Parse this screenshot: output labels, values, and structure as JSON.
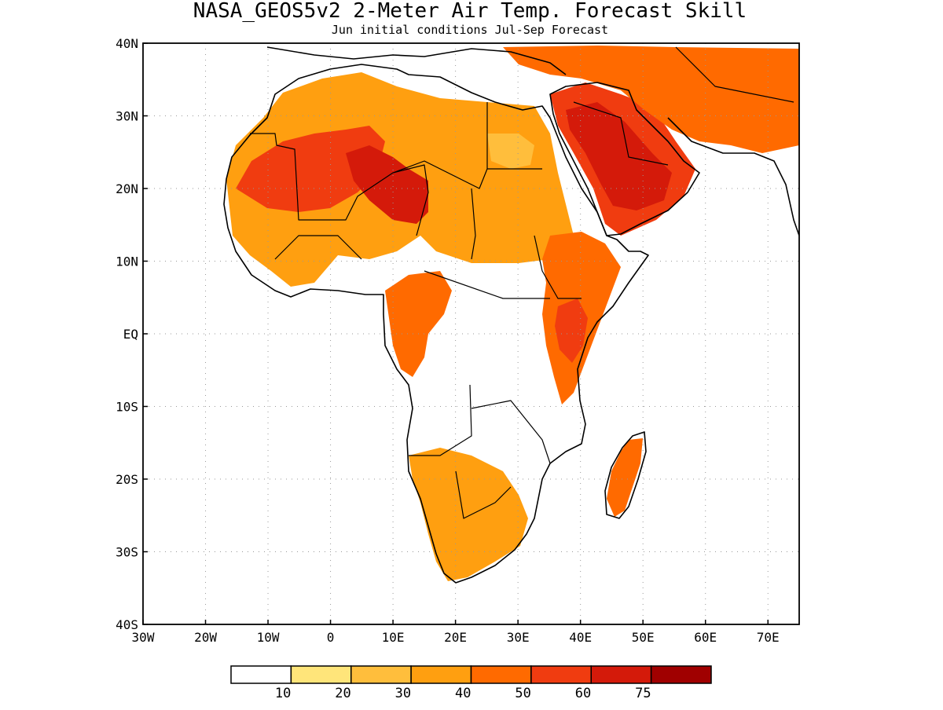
{
  "title": "NASA_GEOS5v2 2-Meter Air Temp. Forecast Skill",
  "subtitle": "Jun initial conditions  Jul-Sep Forecast",
  "map": {
    "lon_range": [
      -30,
      75
    ],
    "lat_range": [
      -40,
      40
    ],
    "lon_ticks": [
      {
        "value": -30,
        "label": "30W"
      },
      {
        "value": -20,
        "label": "20W"
      },
      {
        "value": -10,
        "label": "10W"
      },
      {
        "value": 0,
        "label": "0"
      },
      {
        "value": 10,
        "label": "10E"
      },
      {
        "value": 20,
        "label": "20E"
      },
      {
        "value": 30,
        "label": "30E"
      },
      {
        "value": 40,
        "label": "40E"
      },
      {
        "value": 50,
        "label": "50E"
      },
      {
        "value": 60,
        "label": "60E"
      },
      {
        "value": 70,
        "label": "70E"
      }
    ],
    "lat_ticks": [
      {
        "value": 40,
        "label": "40N"
      },
      {
        "value": 30,
        "label": "30N"
      },
      {
        "value": 20,
        "label": "20N"
      },
      {
        "value": 10,
        "label": "10N"
      },
      {
        "value": 0,
        "label": "EQ"
      },
      {
        "value": -10,
        "label": "10S"
      },
      {
        "value": -20,
        "label": "20S"
      },
      {
        "value": -30,
        "label": "30S"
      },
      {
        "value": -40,
        "label": "40S"
      }
    ],
    "grid": true,
    "colors": {
      "land_outline": "#000000",
      "grid": "#999999"
    }
  },
  "colorbar": {
    "bins": [
      {
        "color": "#ffffff"
      },
      {
        "color": "#ffe57a"
      },
      {
        "color": "#ffbe3c"
      },
      {
        "color": "#ff9f10"
      },
      {
        "color": "#ff6a00"
      },
      {
        "color": "#f03c10"
      },
      {
        "color": "#d41a0a"
      },
      {
        "color": "#a00000"
      }
    ],
    "ticks": [
      "10",
      "20",
      "30",
      "40",
      "50",
      "60",
      "75"
    ]
  },
  "skill_regions": [
    {
      "name": "sahara-sahel",
      "level": 3
    },
    {
      "name": "west-sahara-core",
      "level": 5
    },
    {
      "name": "central-sahara-core",
      "level": 6
    },
    {
      "name": "arabia",
      "level": 5
    },
    {
      "name": "arabia-core",
      "level": 6
    },
    {
      "name": "iran",
      "level": 4
    },
    {
      "name": "east-africa",
      "level": 4
    },
    {
      "name": "east-africa-core",
      "level": 5
    },
    {
      "name": "congo",
      "level": 4
    },
    {
      "name": "southern-africa",
      "level": 3
    },
    {
      "name": "madagascar",
      "level": 4
    },
    {
      "name": "egypt-sudan",
      "level": 2
    }
  ]
}
